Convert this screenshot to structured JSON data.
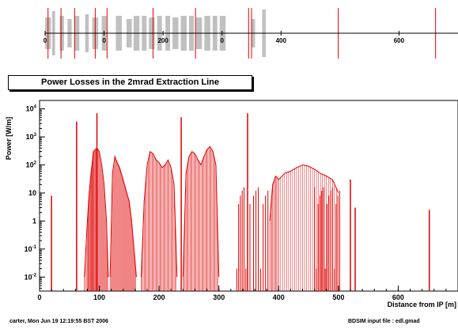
{
  "chart_data": [
    {
      "type": "line",
      "title": "",
      "xlim": [
        0,
        700
      ],
      "x_ticks": [
        "0",
        "0",
        "200",
        "0",
        "400",
        "600"
      ],
      "beamline_elements": [
        {
          "x1": 0,
          "x2": 10,
          "h": 20
        },
        {
          "x1": 12,
          "x2": 17,
          "h": 28
        },
        {
          "x1": 25,
          "x2": 32,
          "h": 22
        },
        {
          "x1": 38,
          "x2": 45,
          "h": 18
        },
        {
          "x1": 50,
          "x2": 58,
          "h": 22
        },
        {
          "x1": 68,
          "x2": 74,
          "h": 24
        },
        {
          "x1": 80,
          "x2": 90,
          "h": 20
        },
        {
          "x1": 96,
          "x2": 104,
          "h": 22
        },
        {
          "x1": 120,
          "x2": 130,
          "h": 22
        },
        {
          "x1": 138,
          "x2": 147,
          "h": 18
        },
        {
          "x1": 150,
          "x2": 160,
          "h": 22
        },
        {
          "x1": 164,
          "x2": 172,
          "h": 22
        },
        {
          "x1": 176,
          "x2": 186,
          "h": 20
        },
        {
          "x1": 190,
          "x2": 198,
          "h": 22
        },
        {
          "x1": 204,
          "x2": 212,
          "h": 22
        },
        {
          "x1": 216,
          "x2": 226,
          "h": 20
        },
        {
          "x1": 230,
          "x2": 240,
          "h": 22
        },
        {
          "x1": 244,
          "x2": 252,
          "h": 22
        },
        {
          "x1": 256,
          "x2": 266,
          "h": 20
        },
        {
          "x1": 270,
          "x2": 280,
          "h": 22
        },
        {
          "x1": 284,
          "x2": 292,
          "h": 22
        },
        {
          "x1": 296,
          "x2": 306,
          "h": 22
        },
        {
          "x1": 350,
          "x2": 356,
          "h": 18
        },
        {
          "x1": 368,
          "x2": 374,
          "h": 30
        }
      ],
      "red_markers": [
        5,
        27,
        50,
        85,
        105,
        183,
        255,
        345,
        350,
        497,
        662
      ]
    },
    {
      "type": "line",
      "title": "Power Losses in the 2mrad Extraction Line",
      "xlabel": "Distance from IP [m]",
      "ylabel": "Power [W/m]",
      "xlim": [
        0,
        700
      ],
      "y_log_range": [
        -2.5,
        4.3
      ],
      "x_ticks": [
        0,
        100,
        200,
        300,
        400,
        500,
        600
      ],
      "y_ticks": [
        "10^4",
        "10^3",
        "10^2",
        "10",
        "1",
        "10^-1",
        "10^-2"
      ],
      "spikes": [
        {
          "x": 20,
          "y": 8
        },
        {
          "x": 62,
          "y": 3500
        },
        {
          "x": 96,
          "y": 7000
        },
        {
          "x": 237,
          "y": 5000
        },
        {
          "x": 348,
          "y": 7000
        },
        {
          "x": 520,
          "y": 30
        },
        {
          "x": 528,
          "y": 3
        },
        {
          "x": 652,
          "y": 2.5
        }
      ],
      "envelopes": [
        {
          "x": [
            75,
            80,
            83,
            86,
            88,
            90,
            93,
            96,
            100,
            104,
            108,
            112,
            115
          ],
          "y": [
            0.01,
            1,
            10,
            50,
            120,
            300,
            350,
            400,
            300,
            100,
            20,
            1,
            0.01
          ]
        },
        {
          "x": [
            118,
            122,
            126,
            130,
            134,
            138,
            142,
            146,
            150,
            154,
            158,
            162
          ],
          "y": [
            0.01,
            50,
            200,
            120,
            80,
            40,
            20,
            10,
            5,
            1,
            0.1,
            0.01
          ]
        },
        {
          "x": [
            170,
            175,
            180,
            185,
            190,
            195,
            200,
            205,
            210,
            215,
            220,
            225,
            230
          ],
          "y": [
            0.01,
            5,
            100,
            300,
            250,
            150,
            120,
            80,
            100,
            150,
            80,
            20,
            0.01
          ]
        },
        {
          "x": [
            240,
            245,
            250,
            255,
            260,
            265,
            270,
            275,
            280,
            285,
            290,
            295,
            300
          ],
          "y": [
            0.01,
            50,
            200,
            300,
            250,
            150,
            100,
            200,
            350,
            450,
            300,
            100,
            0.01
          ]
        },
        {
          "x": [
            385,
            390,
            395,
            400,
            410,
            420,
            430,
            440,
            450,
            460,
            470,
            480,
            490,
            500
          ],
          "y": [
            1,
            20,
            40,
            30,
            50,
            60,
            80,
            100,
            90,
            70,
            50,
            40,
            30,
            10
          ]
        }
      ],
      "dense_x": [
        330,
        333,
        336,
        339,
        342,
        345,
        352,
        358,
        362,
        366,
        370,
        374,
        378,
        382,
        460,
        463,
        466,
        469,
        472,
        475,
        478,
        481,
        484,
        487,
        490,
        493,
        496,
        499,
        502
      ]
    }
  ],
  "footer": {
    "left": "carter, Mon Jun 19 12:19:55 BST 2006",
    "right": "BDSIM input file : edl.gmad"
  },
  "colors": {
    "series": "#e00000",
    "element": "#c0c0c0"
  }
}
